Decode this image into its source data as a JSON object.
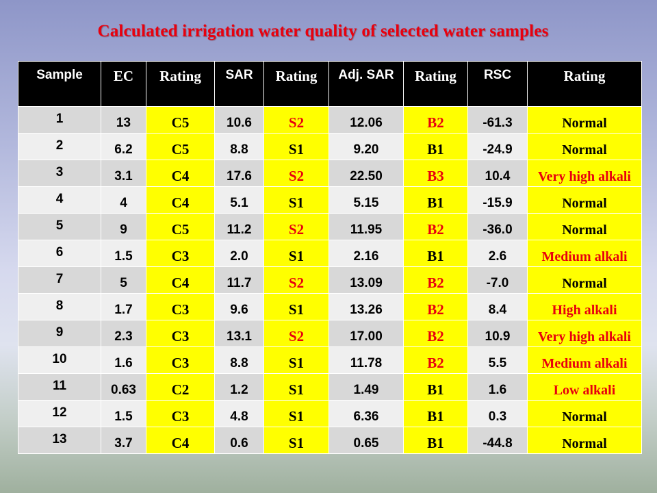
{
  "title": "Calculated irrigation water quality of selected water samples",
  "headers": [
    "Sample",
    "EC",
    "Rating",
    "SAR",
    "Rating",
    "Adj. SAR",
    "Rating",
    "RSC",
    "Rating"
  ],
  "colors": {
    "rating_bg": "#ffff00",
    "red_text": "#e8000e",
    "header_bg": "#000000"
  },
  "rows": [
    {
      "sample": "1",
      "ec": "13",
      "ec_rating": "C5",
      "sar": "10.6",
      "sar_rating": "S2",
      "adj_sar": "12.06",
      "adj_rating": "B2",
      "rsc": "-61.3",
      "rsc_rating": "Normal"
    },
    {
      "sample": "2",
      "ec": "6.2",
      "ec_rating": "C5",
      "sar": "8.8",
      "sar_rating": "S1",
      "adj_sar": "9.20",
      "adj_rating": "B1",
      "rsc": "-24.9",
      "rsc_rating": "Normal"
    },
    {
      "sample": "3",
      "ec": "3.1",
      "ec_rating": "C4",
      "sar": "17.6",
      "sar_rating": "S2",
      "adj_sar": "22.50",
      "adj_rating": "B3",
      "rsc": "10.4",
      "rsc_rating": "Very high alkali"
    },
    {
      "sample": "4",
      "ec": "4",
      "ec_rating": "C4",
      "sar": "5.1",
      "sar_rating": "S1",
      "adj_sar": "5.15",
      "adj_rating": "B1",
      "rsc": "-15.9",
      "rsc_rating": "Normal"
    },
    {
      "sample": "5",
      "ec": "9",
      "ec_rating": "C5",
      "sar": "11.2",
      "sar_rating": "S2",
      "adj_sar": "11.95",
      "adj_rating": "B2",
      "rsc": "-36.0",
      "rsc_rating": "Normal"
    },
    {
      "sample": "6",
      "ec": "1.5",
      "ec_rating": "C3",
      "sar": "2.0",
      "sar_rating": "S1",
      "adj_sar": "2.16",
      "adj_rating": "B1",
      "rsc": "2.6",
      "rsc_rating": "Medium alkali"
    },
    {
      "sample": "7",
      "ec": "5",
      "ec_rating": "C4",
      "sar": "11.7",
      "sar_rating": "S2",
      "adj_sar": "13.09",
      "adj_rating": "B2",
      "rsc": "-7.0",
      "rsc_rating": "Normal"
    },
    {
      "sample": "8",
      "ec": "1.7",
      "ec_rating": "C3",
      "sar": "9.6",
      "sar_rating": "S1",
      "adj_sar": "13.26",
      "adj_rating": "B2",
      "rsc": "8.4",
      "rsc_rating": "High alkali"
    },
    {
      "sample": "9",
      "ec": "2.3",
      "ec_rating": "C3",
      "sar": "13.1",
      "sar_rating": "S2",
      "adj_sar": "17.00",
      "adj_rating": "B2",
      "rsc": "10.9",
      "rsc_rating": "Very high alkali"
    },
    {
      "sample": "10",
      "ec": "1.6",
      "ec_rating": "C3",
      "sar": "8.8",
      "sar_rating": "S1",
      "adj_sar": "11.78",
      "adj_rating": "B2",
      "rsc": "5.5",
      "rsc_rating": "Medium alkali"
    },
    {
      "sample": "11",
      "ec": "0.63",
      "ec_rating": "C2",
      "sar": "1.2",
      "sar_rating": "S1",
      "adj_sar": "1.49",
      "adj_rating": "B1",
      "rsc": "1.6",
      "rsc_rating": "Low alkali"
    },
    {
      "sample": "12",
      "ec": "1.5",
      "ec_rating": "C3",
      "sar": "4.8",
      "sar_rating": "S1",
      "adj_sar": "6.36",
      "adj_rating": "B1",
      "rsc": "0.3",
      "rsc_rating": "Normal"
    },
    {
      "sample": "13",
      "ec": "3.7",
      "ec_rating": "C4",
      "sar": "0.6",
      "sar_rating": "S1",
      "adj_sar": "0.65",
      "adj_rating": "B1",
      "rsc": "-44.8",
      "rsc_rating": "Normal"
    }
  ]
}
